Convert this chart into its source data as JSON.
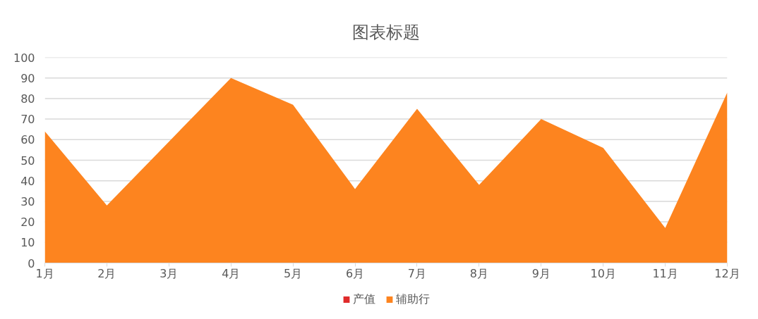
{
  "chart_data": {
    "type": "area",
    "title": "图表标题",
    "categories": [
      "1月",
      "2月",
      "3月",
      "4月",
      "5月",
      "6月",
      "7月",
      "8月",
      "9月",
      "10月",
      "11月",
      "12月"
    ],
    "series": [
      {
        "name": "产值",
        "color": "#e02b2b",
        "values": [
          null,
          null,
          null,
          null,
          null,
          null,
          null,
          null,
          null,
          null,
          null,
          null
        ]
      },
      {
        "name": "辅助行",
        "color": "#fd841f",
        "values": [
          64,
          28,
          59,
          90,
          77,
          36,
          75,
          38,
          70,
          56,
          17,
          83
        ]
      }
    ],
    "ylim": [
      0,
      100
    ],
    "yticks": [
      0,
      10,
      20,
      30,
      40,
      50,
      60,
      70,
      80,
      90,
      100
    ],
    "grid": "y",
    "legend": "bottom"
  }
}
